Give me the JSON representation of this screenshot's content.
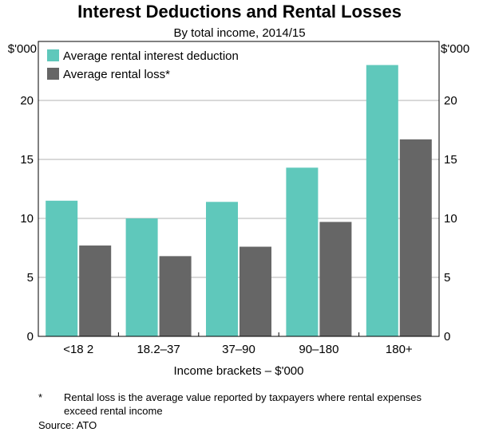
{
  "chart_data": {
    "type": "bar",
    "title": "Interest Deductions and Rental Losses",
    "subtitle": "By total income, 2014/15",
    "unit_left": "$'000",
    "unit_right": "$'000",
    "xlabel": "Income brackets – $'000",
    "categories": [
      "<18 2",
      "18.2–37",
      "37–90",
      "90–180",
      "180+"
    ],
    "series": [
      {
        "name": "Average rental interest deduction",
        "color": "#5fc8bb",
        "values": [
          11.5,
          10.0,
          11.4,
          14.3,
          23.0
        ]
      },
      {
        "name": "Average rental loss*",
        "color": "#666666",
        "values": [
          7.7,
          6.8,
          7.6,
          9.7,
          16.7
        ]
      }
    ],
    "ylim": [
      0,
      25
    ],
    "yticks": [
      0,
      5,
      10,
      15,
      20
    ],
    "grid": true,
    "legend": "top-left"
  },
  "footnote": {
    "marker": "*",
    "text": "Rental loss is the average value reported by taxpayers where rental expenses exceed rental income",
    "source": "Source:   ATO"
  }
}
